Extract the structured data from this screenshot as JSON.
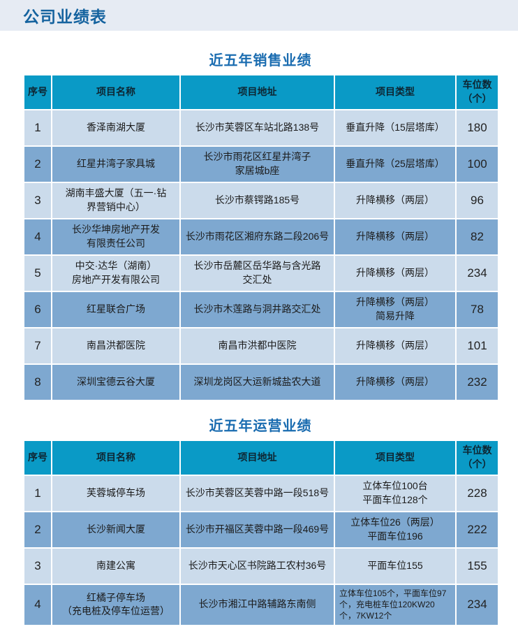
{
  "page": {
    "title": "公司业绩表"
  },
  "colors": {
    "band_bg": "#e6ebf3",
    "page_title_blue": "#15639f",
    "section_title_blue": "#1a6cb0",
    "table_header_bg": "#0a9ac6",
    "row_light": "#cbdbeb",
    "row_dark": "#7ea8d0"
  },
  "tables": [
    {
      "title": "近五年销售业绩",
      "headers": [
        "序号",
        "项目名称",
        "项目地址",
        "项目类型",
        "车位数\n（个）"
      ],
      "rows": [
        [
          "1",
          "香泽南湖大厦",
          "长沙市芙蓉区车站北路138号",
          "垂直升降（15层塔库）",
          "180"
        ],
        [
          "2",
          "红星井湾子家具城",
          "长沙市雨花区红星井湾子\n家居城b座",
          "垂直升降（25层塔库）",
          "100"
        ],
        [
          "3",
          "湖南丰盛大厦（五一·钻\n界营销中心）",
          "长沙市蔡锷路185号",
          "升降横移（两层）",
          "96"
        ],
        [
          "4",
          "长沙华坤房地产开发\n有限责任公司",
          "长沙市雨花区湘府东路二段206号",
          "升降横移（两层）",
          "82"
        ],
        [
          "5",
          "中交·达华（湖南）\n房地产开发有限公司",
          "长沙市岳麓区岳华路与含光路\n交汇处",
          "升降横移（两层）",
          "234"
        ],
        [
          "6",
          "红星联合广场",
          "长沙市木莲路与洞井路交汇处",
          "升降横移（两层）\n简易升降",
          "78"
        ],
        [
          "7",
          "南昌洪都医院",
          "南昌市洪都中医院",
          "升降横移（两层）",
          "101"
        ],
        [
          "8",
          "深圳宝德云谷大厦",
          "深圳龙岗区大运新城盐农大道",
          "升降横移（两层）",
          "232"
        ]
      ]
    },
    {
      "title": "近五年运营业绩",
      "headers": [
        "序号",
        "项目名称",
        "项目地址",
        "项目类型",
        "车位数\n（个）"
      ],
      "rows": [
        [
          "1",
          "芙蓉城停车场",
          "长沙市芙蓉区芙蓉中路一段518号",
          "立体车位100台\n平面车位128个",
          "228"
        ],
        [
          "2",
          "长沙新闻大厦",
          "长沙市开福区芙蓉中路一段469号",
          "立体车位26（两层）\n平面车位196",
          "222"
        ],
        [
          "3",
          "南建公寓",
          "长沙市天心区书院路工农村36号",
          "平面车位155",
          "155"
        ],
        [
          "4",
          "红橘子停车场\n（充电桩及停车位运营）",
          "长沙市湘江中路辅路东南侧",
          "立体车位105个，平面车位97个，充电桩车位120KW20个，7KW12个",
          "234"
        ]
      ]
    }
  ]
}
